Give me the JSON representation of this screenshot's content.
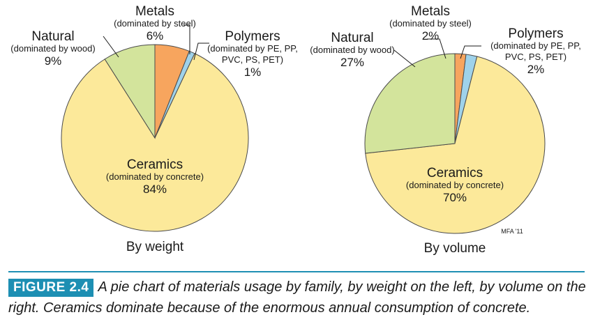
{
  "chart_data": [
    {
      "type": "pie",
      "title": "By weight",
      "slices": [
        {
          "name": "Ceramics",
          "note": "(dominated by concrete)",
          "value": 84,
          "label": "84%",
          "color": "#fce99a"
        },
        {
          "name": "Natural",
          "note": "(dominated by wood)",
          "value": 9,
          "label": "9%",
          "color": "#d3e49c"
        },
        {
          "name": "Metals",
          "note": "(dominated by steel)",
          "value": 6,
          "label": "6%",
          "color": "#f7a55e"
        },
        {
          "name": "Polymers",
          "note": "(dominated by PE, PP,\nPVC, PS, PET)",
          "value": 1,
          "label": "1%",
          "color": "#9fd2ea"
        }
      ]
    },
    {
      "type": "pie",
      "title": "By volume",
      "slices": [
        {
          "name": "Ceramics",
          "note": "(dominated by concrete)",
          "value": 70,
          "label": "70%",
          "color": "#fce99a"
        },
        {
          "name": "Natural",
          "note": "(dominated by wood)",
          "value": 27,
          "label": "27%",
          "color": "#d3e49c"
        },
        {
          "name": "Metals",
          "note": "(dominated by steel)",
          "value": 2,
          "label": "2%",
          "color": "#f7a55e"
        },
        {
          "name": "Polymers",
          "note": "(dominated by PE, PP,\nPVC, PS, PET)",
          "value": 2,
          "label": "2%",
          "color": "#9fd2ea"
        }
      ],
      "credit": "MFA '11"
    }
  ],
  "caption": {
    "figure_label": "FIGURE 2.4",
    "text": "A pie chart of materials usage by family, by weight on the left, by volume on the right. Ceramics dominate because of the enormous annual consumption of concrete."
  },
  "colors": {
    "accent": "#1d8fb3",
    "outline": "#4a4a4a"
  }
}
